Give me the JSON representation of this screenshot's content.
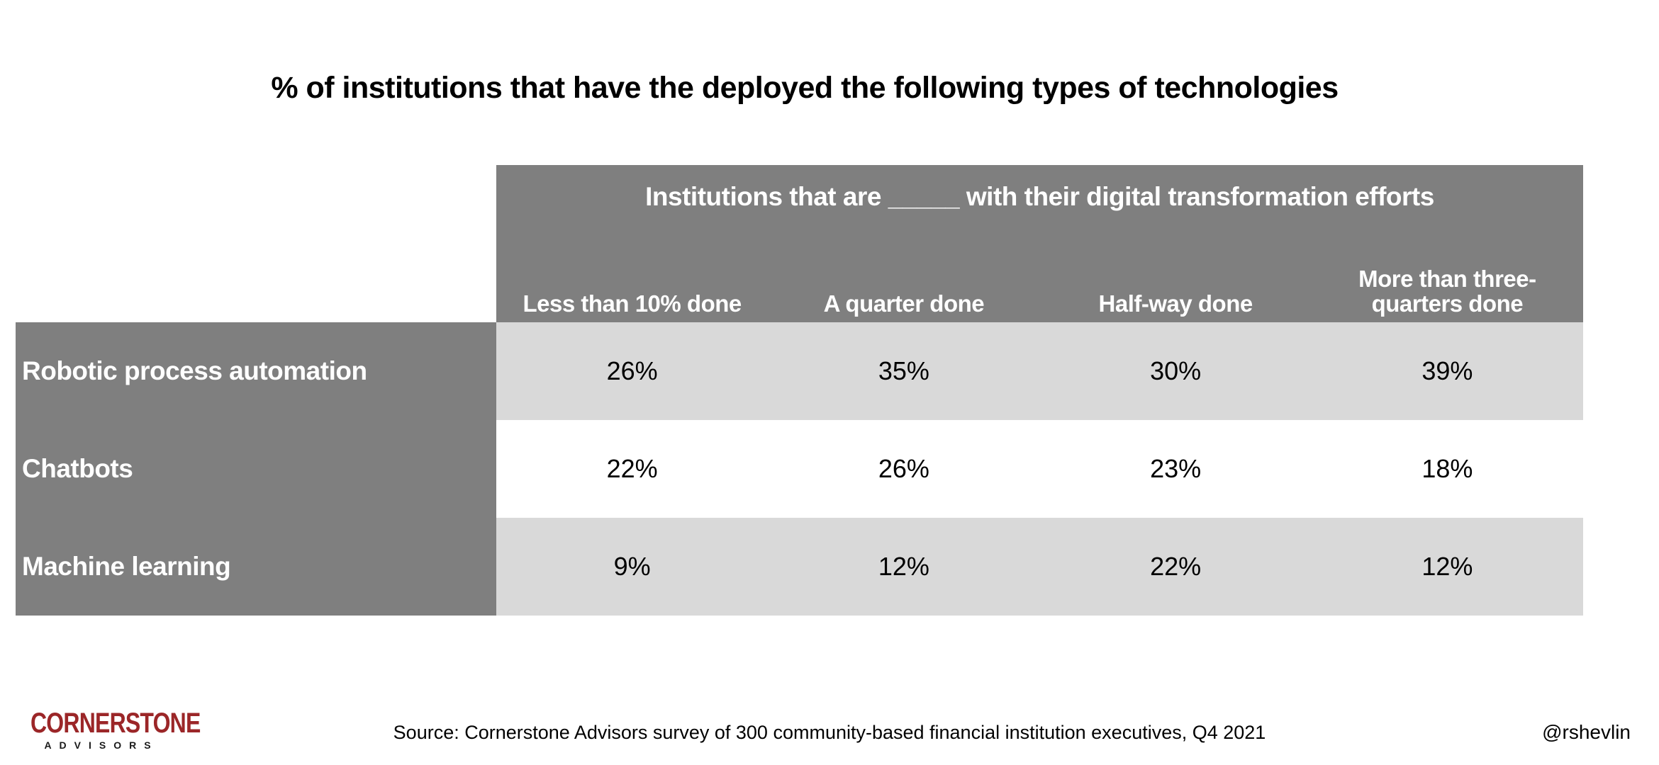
{
  "title": "% of institutions that have the deployed the following types of technologies",
  "table": {
    "header_title": "Institutions that are _____ with their digital transformation efforts",
    "columns": [
      "Less than 10% done",
      "A quarter done",
      "Half-way done",
      "More than three-quarters done"
    ],
    "rows": [
      {
        "label": "Robotic process automation",
        "values": [
          "26%",
          "35%",
          "30%",
          "39%"
        ]
      },
      {
        "label": "Chatbots",
        "values": [
          "22%",
          "26%",
          "23%",
          "18%"
        ]
      },
      {
        "label": "Machine learning",
        "values": [
          "9%",
          "12%",
          "22%",
          "12%"
        ]
      }
    ]
  },
  "footer": {
    "logo_primary": "CORNERSTONE",
    "logo_secondary": "ADVISORS",
    "source": "Source: Cornerstone Advisors survey of 300 community-based financial institution executives, Q4 2021",
    "handle": "@rshevlin"
  },
  "colors": {
    "block_gray": "#7f7f7f",
    "row_light_gray": "#d9d9d9",
    "logo_red": "#9b2628",
    "text_white": "#ffffff",
    "text_black": "#000000"
  },
  "chart_data": {
    "type": "table",
    "title": "% of institutions that have the deployed the following types of technologies",
    "column_group_label": "Institutions that are _____ with their digital transformation efforts",
    "categories": [
      "Less than 10% done",
      "A quarter done",
      "Half-way done",
      "More than three-quarters done"
    ],
    "series": [
      {
        "name": "Robotic process automation",
        "values": [
          26,
          35,
          30,
          39
        ]
      },
      {
        "name": "Chatbots",
        "values": [
          22,
          26,
          23,
          18
        ]
      },
      {
        "name": "Machine learning",
        "values": [
          9,
          12,
          22,
          12
        ]
      }
    ],
    "unit": "%",
    "source": "Source: Cornerstone Advisors survey of 300 community-based financial institution executives, Q4 2021"
  }
}
